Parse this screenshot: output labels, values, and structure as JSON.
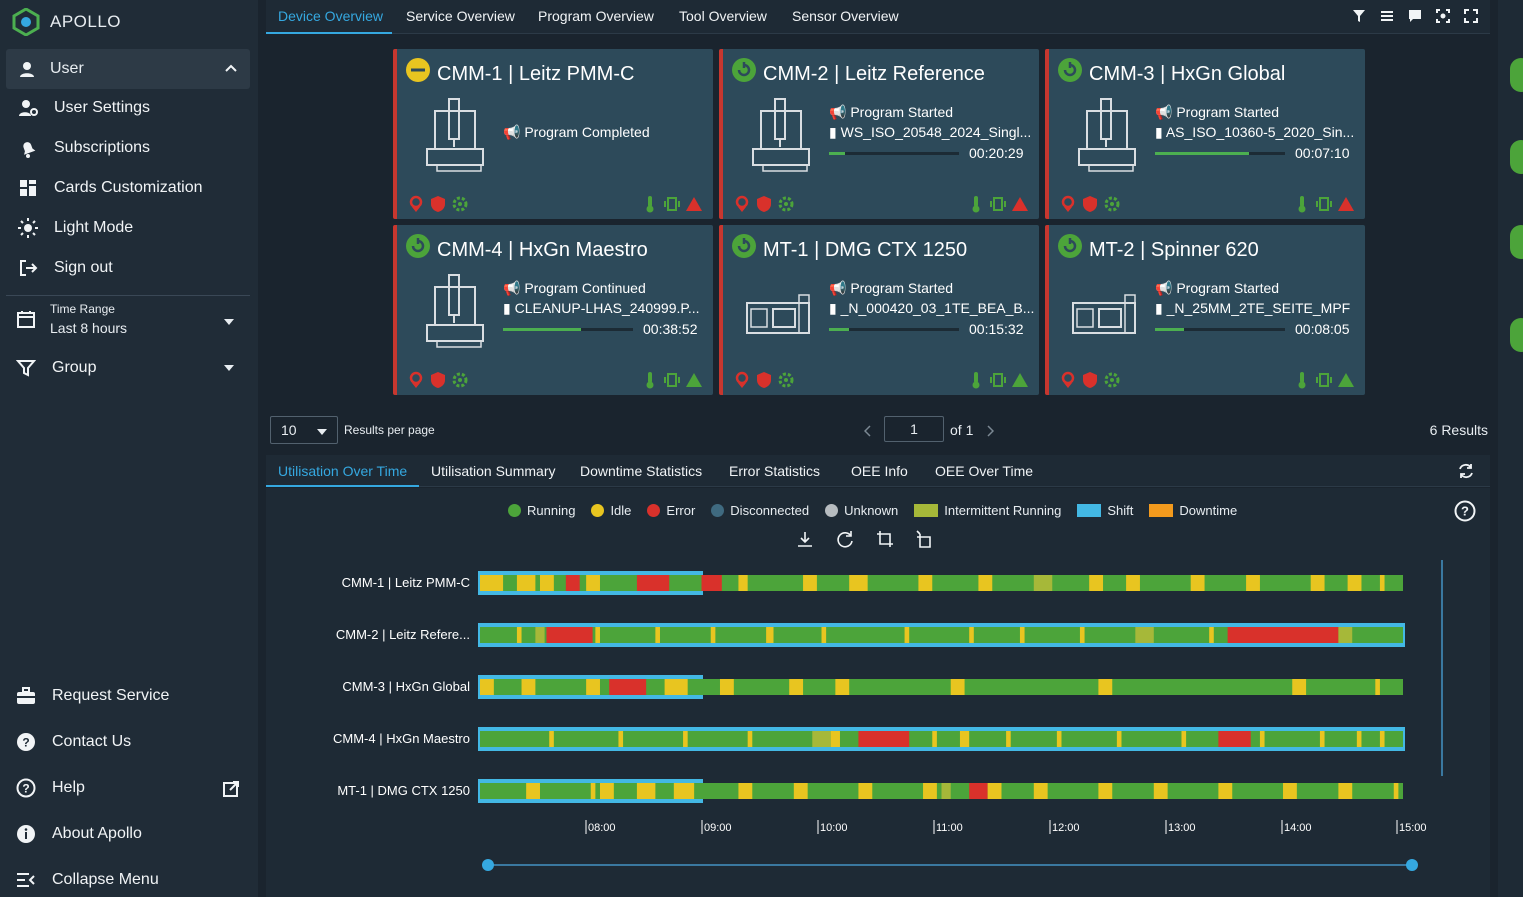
{
  "app": {
    "name": "APOLLO"
  },
  "sidebar": {
    "user_label": "User",
    "items": [
      {
        "label": "User Settings",
        "icon": "user-settings-icon"
      },
      {
        "label": "Subscriptions",
        "icon": "bell-icon"
      },
      {
        "label": "Cards Customization",
        "icon": "grid-icon"
      },
      {
        "label": "Light Mode",
        "icon": "sun-icon"
      },
      {
        "label": "Sign out",
        "icon": "sign-out-icon"
      }
    ],
    "time_range_label": "Time Range",
    "time_range_value": "Last 8 hours",
    "group_label": "Group",
    "bottom": [
      {
        "label": "Request Service",
        "icon": "toolbox-icon"
      },
      {
        "label": "Contact Us",
        "icon": "question-bubble-icon"
      },
      {
        "label": "Help",
        "icon": "help-icon"
      },
      {
        "label": "About Apollo",
        "icon": "info-icon"
      },
      {
        "label": "Collapse Menu",
        "icon": "collapse-icon"
      }
    ]
  },
  "top_tabs": [
    "Device Overview",
    "Service Overview",
    "Program Overview",
    "Tool Overview",
    "Sensor Overview"
  ],
  "cards": [
    {
      "title": "CMM-1 | Leitz PMM-C",
      "status": "idle",
      "event": "Program Completed",
      "file": "",
      "time": "",
      "progress": 0
    },
    {
      "title": "CMM-2 | Leitz Reference",
      "status": "running",
      "event": "Program Started",
      "file": "WS_ISO_20548_2024_Singl...",
      "time": "00:20:29",
      "progress": 0.12
    },
    {
      "title": "CMM-3 | HxGn Global",
      "status": "running",
      "event": "Program Started",
      "file": "AS_ISO_10360-5_2020_Sin...",
      "time": "00:07:10",
      "progress": 0.72
    },
    {
      "title": "CMM-4 | HxGn Maestro",
      "status": "running",
      "event": "Program Continued",
      "file": "CLEANUP-LHAS_240999.P...",
      "time": "00:38:52",
      "progress": 0.6
    },
    {
      "title": "MT-1 | DMG CTX 1250",
      "status": "running",
      "event": "Program Started",
      "file": "_N_000420_03_1TE_BEA_B...",
      "time": "00:15:32",
      "progress": 0.15
    },
    {
      "title": "MT-2 | Spinner 620",
      "status": "running",
      "event": "Program Started",
      "file": "_N_25MM_2TE_SEITE_MPF",
      "time": "00:08:05",
      "progress": 0.22
    }
  ],
  "pager": {
    "per_page": "10",
    "per_page_label": "Results per page",
    "page": "1",
    "of": "of 1",
    "results": "6 Results"
  },
  "bottom_tabs": [
    "Utilisation Over Time",
    "Utilisation Summary",
    "Downtime Statistics",
    "Error Statistics",
    "OEE Info",
    "OEE Over Time"
  ],
  "legend": [
    {
      "label": "Running",
      "color": "#4ca43a",
      "shape": "dot"
    },
    {
      "label": "Idle",
      "color": "#e8c520",
      "shape": "dot"
    },
    {
      "label": "Error",
      "color": "#d9312b",
      "shape": "dot"
    },
    {
      "label": "Disconnected",
      "color": "#3f6a80",
      "shape": "dot"
    },
    {
      "label": "Unknown",
      "color": "#b7bcc0",
      "shape": "dot"
    },
    {
      "label": "Intermittent Running",
      "color": "#a6b839",
      "shape": "rect"
    },
    {
      "label": "Shift",
      "color": "#43b8e4",
      "shape": "rect"
    },
    {
      "label": "Downtime",
      "color": "#f39a1d",
      "shape": "rect"
    }
  ],
  "chart_data": {
    "type": "timeline",
    "rows": [
      "CMM-1 | Leitz PMM-C",
      "CMM-2 | Leitz Refere...",
      "CMM-3 | HxGn Global",
      "CMM-4 | HxGn Maestro",
      "MT-1 | DMG CTX 1250"
    ],
    "x_ticks": [
      "08:00",
      "09:00",
      "10:00",
      "11:00",
      "12:00",
      "13:00",
      "14:00",
      "15:00"
    ]
  }
}
